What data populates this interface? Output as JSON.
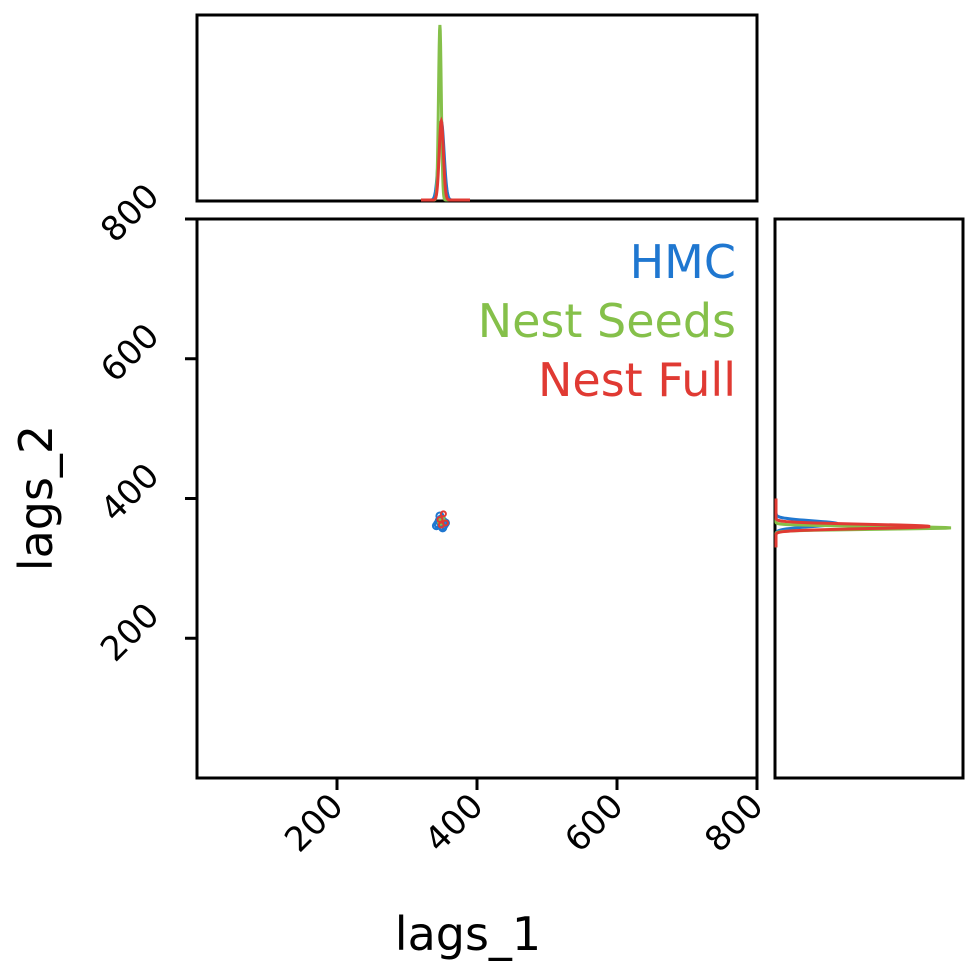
{
  "chart_data": {
    "type": "scatter",
    "xlabel": "lags_1",
    "ylabel": "lags_2",
    "xlim": [
      0,
      800
    ],
    "ylim": [
      0,
      800
    ],
    "x_ticks": [
      "200",
      "400",
      "600",
      "800"
    ],
    "y_ticks": [
      "200",
      "400",
      "600",
      "800"
    ],
    "legend_placement": "top-right",
    "series": [
      {
        "name": "HMC",
        "color": "#1f77d0",
        "points": [
          [
            345,
            362
          ],
          [
            348,
            365
          ],
          [
            350,
            360
          ],
          [
            352,
            367
          ],
          [
            346,
            368
          ],
          [
            353,
            362
          ],
          [
            349,
            371
          ],
          [
            344,
            364
          ],
          [
            351,
            358
          ],
          [
            347,
            375
          ],
          [
            355,
            365
          ],
          [
            342,
            361
          ]
        ],
        "marginal_x": {
          "center": 349,
          "spread": 4,
          "peak": 0.45
        },
        "marginal_y": {
          "center": 364,
          "spread": 4,
          "peak": 0.35
        }
      },
      {
        "name": "Nest Seeds",
        "color": "#85c04a",
        "points": [
          [
            350,
            370
          ],
          [
            348,
            366
          ]
        ],
        "marginal_x": {
          "center": 347,
          "spread": 2,
          "peak": 1.0
        },
        "marginal_y": {
          "center": 358,
          "spread": 2,
          "peak": 1.0
        }
      },
      {
        "name": "Nest Full",
        "color": "#e03a33",
        "points": [
          [
            349,
            362
          ],
          [
            352,
            378
          ],
          [
            355,
            365
          ],
          [
            347,
            370
          ]
        ],
        "marginal_x": {
          "center": 349,
          "spread": 3,
          "peak": 0.45
        },
        "marginal_y": {
          "center": 360,
          "spread": 3,
          "peak": 0.88
        }
      }
    ]
  }
}
